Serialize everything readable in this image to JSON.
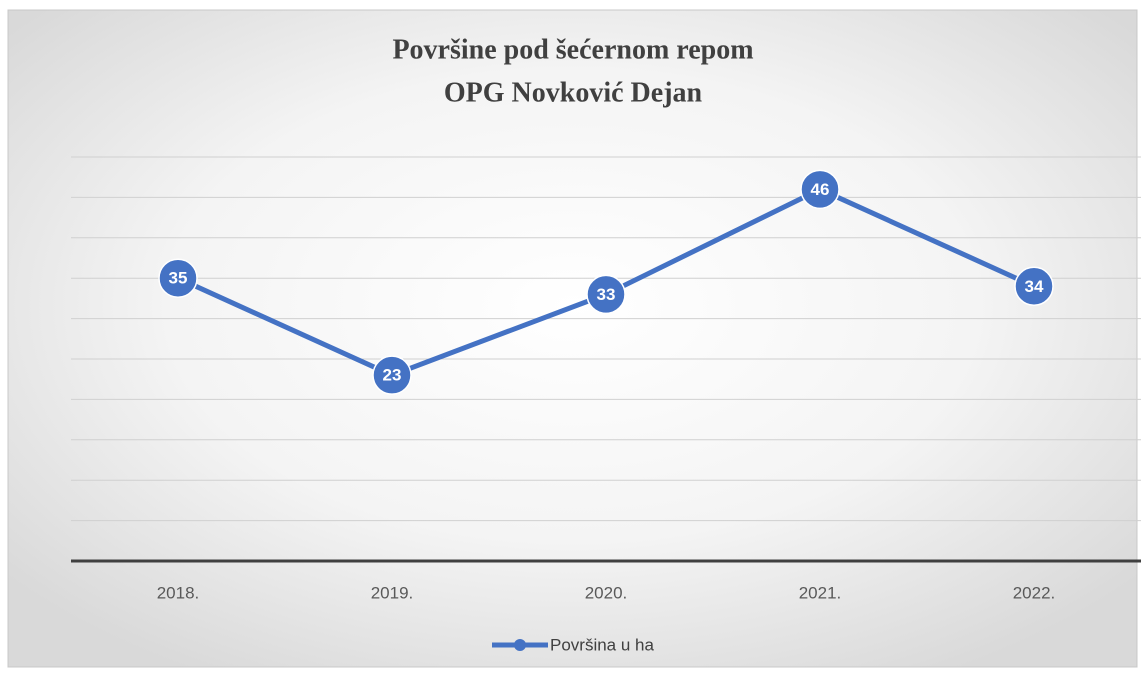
{
  "chart_data": {
    "type": "line",
    "title": "Površine pod šećernom repom",
    "subtitle": "OPG Novković Dejan",
    "categories": [
      "2018.",
      "2019.",
      "2020.",
      "2021.",
      "2022."
    ],
    "series": [
      {
        "name": "Površina u ha",
        "color": "#4472c4",
        "values": [
          35,
          23,
          33,
          46,
          34
        ]
      }
    ],
    "ylim": [
      0,
      50
    ],
    "yticks": [
      0,
      5,
      10,
      15,
      20,
      25,
      30,
      35,
      40,
      45,
      50
    ],
    "grid": true,
    "legend": "bottom"
  }
}
